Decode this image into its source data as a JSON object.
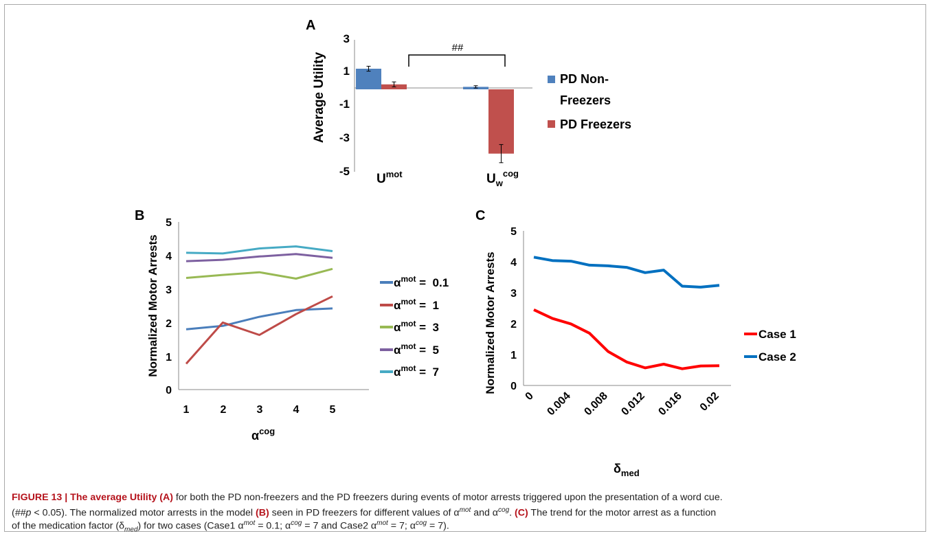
{
  "panelA": {
    "letter": "A",
    "ylabel": "Average Utility",
    "yticks": [
      "3",
      "1",
      "-1",
      "-3",
      "-5"
    ],
    "xlabel_mot": "U",
    "xlabel_mot_sup": "mot",
    "xlabel_cog": "U",
    "xlabel_cog_sub": "w",
    "xlabel_cog_sup": "cog",
    "significance": "##",
    "legend": [
      "PD Non-",
      "Freezers",
      "PD Freezers"
    ]
  },
  "panelB": {
    "letter": "B",
    "ylabel": "Normalized Motor Arrests",
    "yticks": [
      "0",
      "1",
      "2",
      "3",
      "4",
      "5"
    ],
    "xticks": [
      "1",
      "2",
      "3",
      "4",
      "5"
    ],
    "xlabel": "α",
    "xlabel_sup": "cog",
    "legend": [
      {
        "a": "α",
        "sup": "mot",
        "val": " =  0.1"
      },
      {
        "a": "α",
        "sup": "mot",
        "val": " =  1"
      },
      {
        "a": "α",
        "sup": "mot",
        "val": " =  3"
      },
      {
        "a": "α",
        "sup": "mot",
        "val": " =  5"
      },
      {
        "a": "α",
        "sup": "mot",
        "val": " =  7"
      }
    ]
  },
  "panelC": {
    "letter": "C",
    "ylabel": "Normalized Motor Arrests",
    "yticks": [
      "0",
      "1",
      "2",
      "3",
      "4",
      "5"
    ],
    "xticks": [
      "0",
      "0.004",
      "0.008",
      "0.012",
      "0.016",
      "0.02"
    ],
    "xlabel": "δ",
    "xlabel_sub": "med",
    "legend": [
      "Case 1",
      "Case 2"
    ]
  },
  "caption": {
    "line1_label": "FIGURE 13 | The average Utility ",
    "line1_a": "(A)",
    "line1_rest": " for both the PD non-freezers and the PD freezers during events of motor arrests triggered upon the presentation of a word cue.",
    "line2_a": "(",
    "line2_hash": "##",
    "line2_p": "p",
    "line2_b": " < 0.05). The normalized motor arrests in the model ",
    "line2_B": "(B)",
    "line2_c": " seen in PD freezers for different values of α",
    "line2_sup1": "mot",
    "line2_d": " and α",
    "line2_sup2": "cog",
    "line2_e": ". ",
    "line2_C": "(C)",
    "line2_f": " The trend for the motor arrest as a function",
    "line3_a": "of the medication factor (δ",
    "line3_sub": "med",
    "line3_b": ") for two cases (Case1 α",
    "line3_sup1": "mot",
    "line3_c": " = 0.1; α",
    "line3_sup2": "cog",
    "line3_d": " = 7 and Case2 α",
    "line3_sup3": "mot",
    "line3_e": " = 7; α",
    "line3_sup4": "cog",
    "line3_f": " = 7)."
  },
  "chart_data": [
    {
      "type": "bar",
      "categories": [
        "U^mot",
        "U_w^cog"
      ],
      "series": [
        {
          "name": "PD Non-Freezers",
          "color": "#4f81bd",
          "values": [
            1.25,
            0.15
          ],
          "errors": [
            0.15,
            0.07
          ]
        },
        {
          "name": "PD Freezers",
          "color": "#c0504d",
          "values": [
            0.3,
            -3.9
          ],
          "errors": [
            0.15,
            0.55
          ]
        }
      ],
      "ylabel": "Average Utility",
      "ylim": [
        -5,
        3
      ],
      "grid": false,
      "legend": "right",
      "annotation": "##"
    },
    {
      "type": "line",
      "x": [
        1,
        2,
        3,
        4,
        5
      ],
      "series": [
        {
          "name": "α^mot = 0.1",
          "color": "#4a7ebb",
          "values": [
            1.8,
            1.9,
            2.17,
            2.37,
            2.42
          ]
        },
        {
          "name": "α^mot = 1",
          "color": "#be4b48",
          "values": [
            0.77,
            2.0,
            1.63,
            2.25,
            2.78
          ]
        },
        {
          "name": "α^mot = 3",
          "color": "#98b954",
          "values": [
            3.33,
            3.42,
            3.5,
            3.31,
            3.6
          ]
        },
        {
          "name": "α^mot = 5",
          "color": "#7d60a0",
          "values": [
            3.83,
            3.87,
            3.97,
            4.04,
            3.93
          ]
        },
        {
          "name": "α^mot = 7",
          "color": "#46aac4",
          "values": [
            4.08,
            4.06,
            4.21,
            4.27,
            4.13
          ]
        }
      ],
      "xlabel": "α^cog",
      "ylabel": "Normalized Motor Arrests",
      "ylim": [
        0,
        5
      ],
      "grid": false,
      "legend": "right"
    },
    {
      "type": "line",
      "x": [
        0,
        0.002,
        0.004,
        0.006,
        0.008,
        0.01,
        0.012,
        0.014,
        0.016,
        0.018,
        0.02
      ],
      "xticks": [
        0,
        0.004,
        0.008,
        0.012,
        0.016,
        0.02
      ],
      "series": [
        {
          "name": "Case 1",
          "color": "#ff0000",
          "values": [
            2.45,
            2.17,
            1.99,
            1.69,
            1.1,
            0.76,
            0.57,
            0.69,
            0.54,
            0.63,
            0.64
          ]
        },
        {
          "name": "Case 2",
          "color": "#0070c0",
          "values": [
            4.15,
            4.04,
            4.02,
            3.89,
            3.87,
            3.82,
            3.65,
            3.73,
            3.21,
            3.18,
            3.24
          ]
        }
      ],
      "xlabel": "δ_med",
      "ylabel": "Normalized Motor Arrests",
      "ylim": [
        0,
        5
      ],
      "grid": false,
      "legend": "right"
    }
  ]
}
